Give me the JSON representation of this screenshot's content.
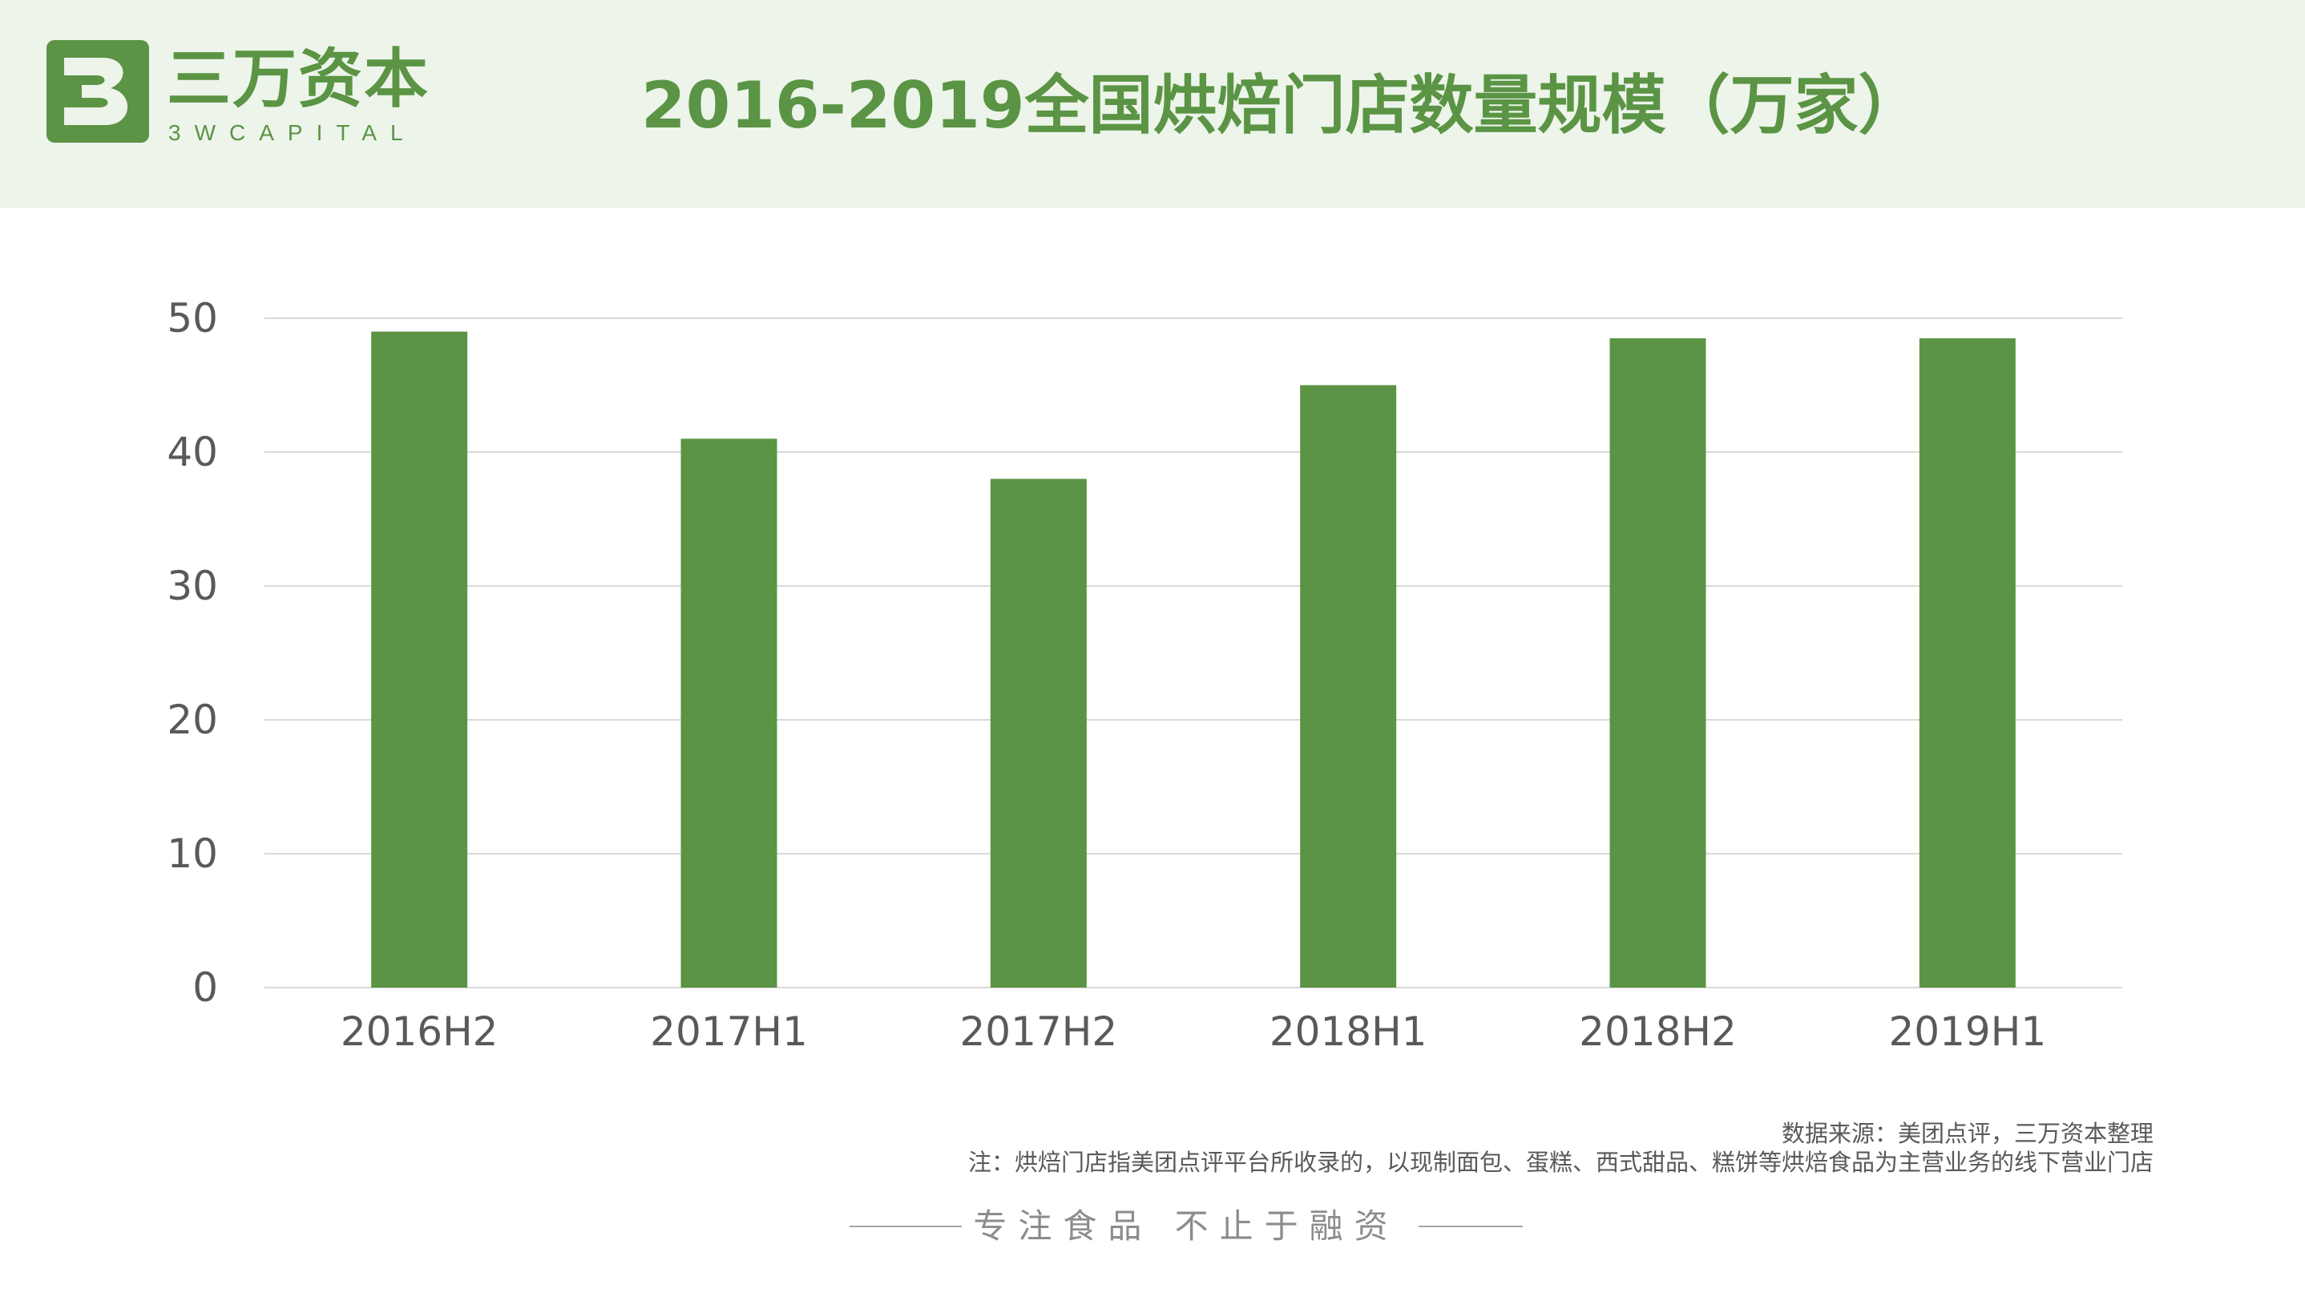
{
  "header": {
    "logo_cn": "三万资本",
    "logo_en": "3WCAPITAL",
    "title": "2016-2019全国烘焙门店数量规模（万家）"
  },
  "colors": {
    "header_bg": "#edf4ea",
    "accent": "#5a9444",
    "bar": "#5a9444",
    "grid": "#d9d9d9",
    "text": "#595959"
  },
  "chart_data": {
    "type": "bar",
    "title": "2016-2019全国烘焙门店数量规模（万家）",
    "categories": [
      "2016H2",
      "2017H1",
      "2017H2",
      "2018H1",
      "2018H2",
      "2019H1"
    ],
    "values": [
      49,
      41,
      38,
      45,
      48.5,
      48.5
    ],
    "ylim": [
      0,
      50
    ],
    "yticks": [
      "0",
      "10",
      "20",
      "30",
      "40",
      "50"
    ],
    "xlabel": "",
    "ylabel": "",
    "grid": true,
    "legend": "none"
  },
  "footer": {
    "source": "数据来源：美团点评，三万资本整理",
    "note": "注：烘焙门店指美团点评平台所收录的，以现制面包、蛋糕、西式甜品、糕饼等烘焙食品为主营业务的线下营业门店",
    "slogan": "专注食品 不止于融资"
  }
}
